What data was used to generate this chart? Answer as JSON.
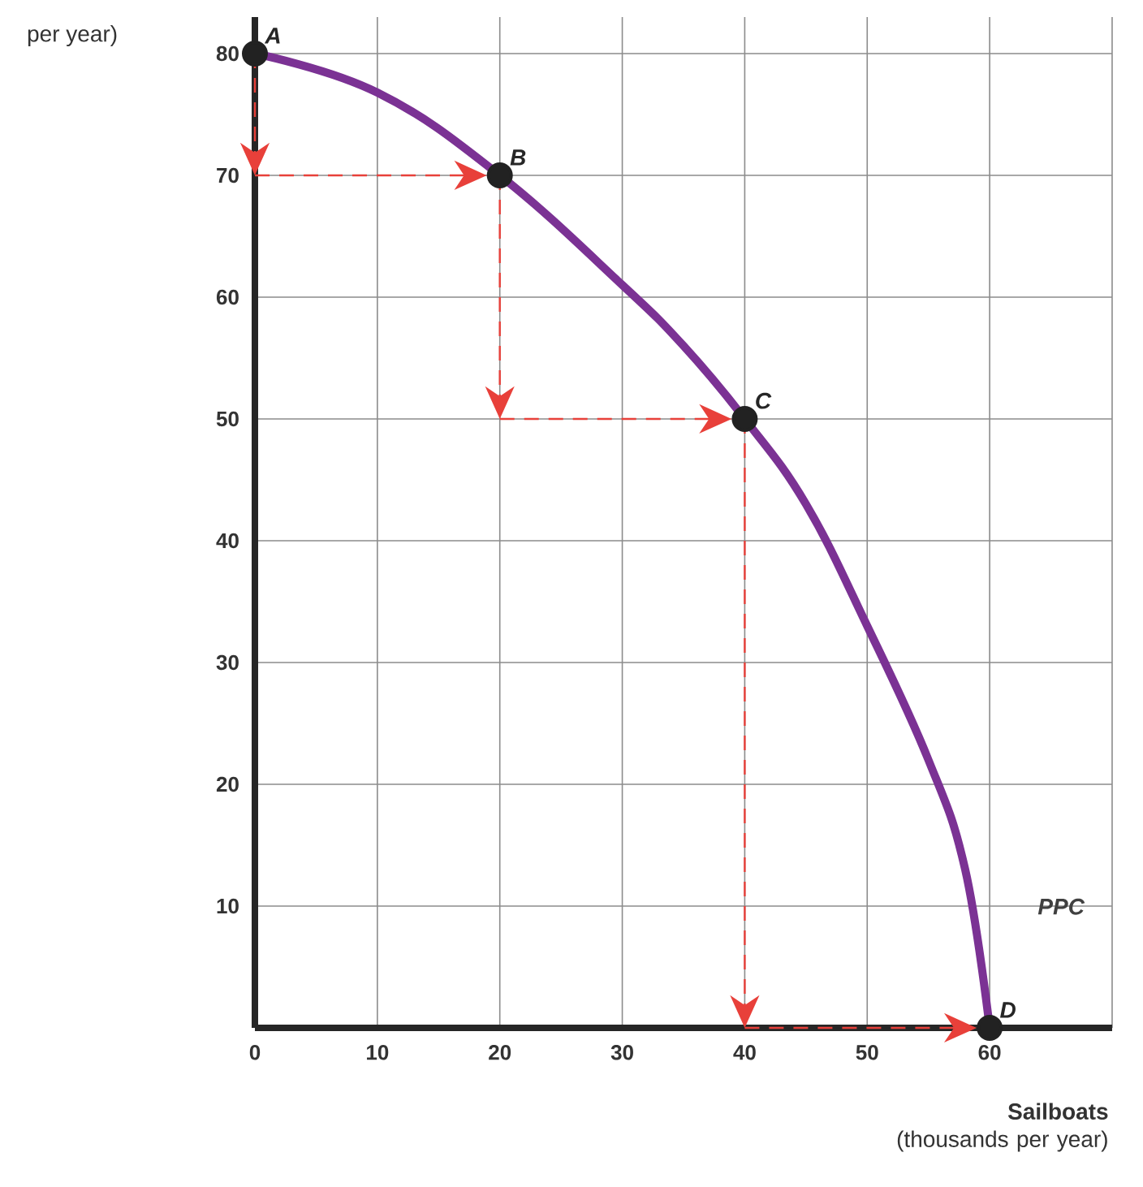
{
  "chart_data": {
    "type": "line",
    "xlabel": "**Sailboats**\n(thousands per year)",
    "ylabel": "per year)",
    "xlim": [
      0,
      70
    ],
    "ylim": [
      0,
      83
    ],
    "xticks": [
      0,
      10,
      20,
      30,
      40,
      50,
      60,
      {
        "value": 70,
        "label": null
      }
    ],
    "yticks": [
      {
        "value": 0,
        "label": null
      },
      10,
      20,
      30,
      40,
      50,
      60,
      70,
      80
    ],
    "grid": true,
    "series": [
      {
        "color": "#7b3294",
        "x": [
          0,
          10,
          20,
          30,
          35,
          40,
          45,
          50,
          55,
          58,
          60
        ],
        "values": [
          80,
          76.8,
          70,
          61,
          56,
          50,
          43,
          33,
          22,
          13,
          0
        ]
      },
      {
        "type": "scatter",
        "color": "#222222",
        "marker": "circle",
        "x": [
          0,
          20,
          40,
          60
        ],
        "values": [
          80,
          70,
          50,
          0
        ]
      }
    ],
    "annotations": [
      {
        "text": "A",
        "x": 0,
        "y": 80
      },
      {
        "text": "B",
        "x": 20,
        "y": 70
      },
      {
        "text": "C",
        "x": 40,
        "y": 50
      },
      {
        "text": "D",
        "x": 60,
        "y": 0
      },
      "PPC"
    ]
  }
}
